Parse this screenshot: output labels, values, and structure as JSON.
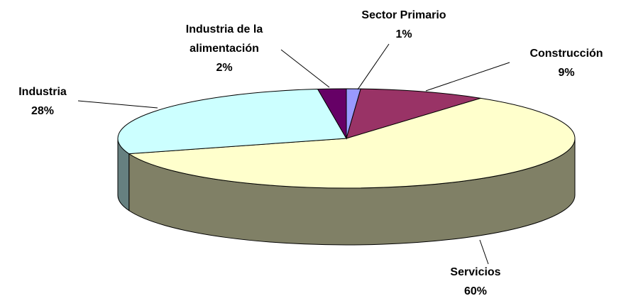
{
  "chart_data": {
    "type": "pie3d",
    "categories": [
      "Sector Primario",
      "Construcción",
      "Servicios",
      "Industria",
      "Industria de la alimentación"
    ],
    "values": [
      1,
      9,
      60,
      28,
      2
    ],
    "value_labels": [
      "1%",
      "9%",
      "60%",
      "28%",
      "2%"
    ],
    "colors": [
      "#9999ff",
      "#993366",
      "#ffffcc",
      "#ccffff",
      "#660066"
    ]
  }
}
